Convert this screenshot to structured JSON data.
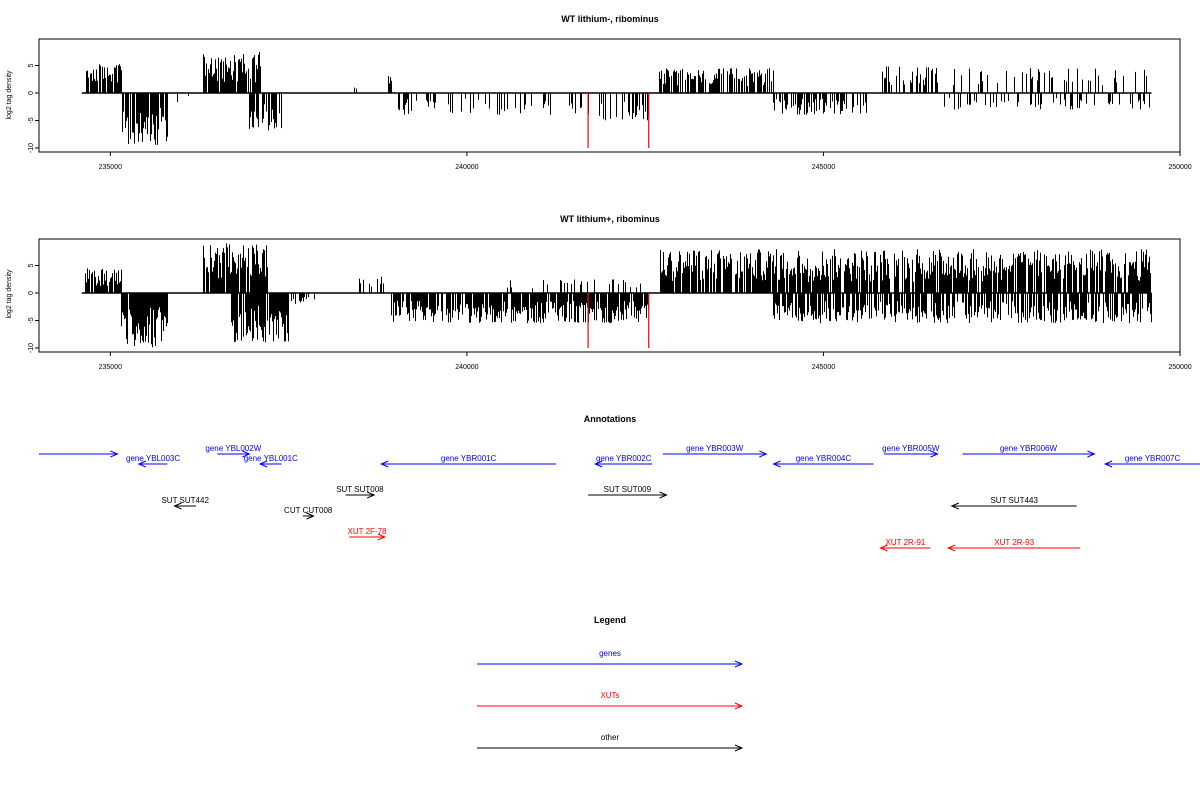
{
  "chart_data": [
    {
      "type": "bar",
      "title": "WT lithium-, ribominus",
      "xlabel": "",
      "ylabel": "log2 tag density",
      "xlim": [
        234000,
        250000
      ],
      "ylim": [
        -10,
        10
      ],
      "x_ticks": [
        235000,
        240000,
        245000,
        250000
      ],
      "x_tick_labels": [
        "235000",
        "240000",
        "245000",
        "250000"
      ],
      "y_ticks": [
        -10,
        -5,
        0,
        5
      ],
      "y_tick_labels": [
        "-10",
        "-5",
        "0",
        "5"
      ],
      "grid": false,
      "baseline_range": [
        234600,
        249600
      ],
      "highlight_lines": [
        {
          "x": 241700,
          "y": -10,
          "color": "#ff0000"
        },
        {
          "x": 242550,
          "y": -10,
          "color": "#ff0000"
        }
      ],
      "clusters": [
        {
          "from": 234650,
          "to": 235150,
          "sign": 1,
          "max": 5.5,
          "density": 0.9
        },
        {
          "from": 235150,
          "to": 235800,
          "sign": -1,
          "max": 9.5,
          "density": 0.9
        },
        {
          "from": 235800,
          "to": 236100,
          "sign": -1,
          "max": 2,
          "density": 0.15
        },
        {
          "from": 236300,
          "to": 237100,
          "sign": 1,
          "max": 7.5,
          "density": 0.9
        },
        {
          "from": 236950,
          "to": 237400,
          "sign": -1,
          "max": 7,
          "density": 0.7
        },
        {
          "from": 238400,
          "to": 238450,
          "sign": 1,
          "max": 1,
          "density": 0.2
        },
        {
          "from": 238900,
          "to": 238950,
          "sign": 1,
          "max": 4,
          "density": 0.3
        },
        {
          "from": 238950,
          "to": 241600,
          "sign": -1,
          "max": 4,
          "density": 0.22
        },
        {
          "from": 241600,
          "to": 242550,
          "sign": -1,
          "max": 5,
          "density": 0.45
        },
        {
          "from": 242700,
          "to": 244300,
          "sign": 1,
          "max": 4.5,
          "density": 0.65
        },
        {
          "from": 244300,
          "to": 245600,
          "sign": -1,
          "max": 4,
          "density": 0.6
        },
        {
          "from": 245800,
          "to": 246600,
          "sign": 1,
          "max": 5,
          "density": 0.45
        },
        {
          "from": 246700,
          "to": 249600,
          "sign": 1,
          "max": 4.5,
          "density": 0.22
        },
        {
          "from": 246700,
          "to": 249600,
          "sign": -1,
          "max": 3,
          "density": 0.22
        }
      ]
    },
    {
      "type": "bar",
      "title": "WT lithium+, ribominus",
      "xlabel": "",
      "ylabel": "log2 tag density",
      "xlim": [
        234000,
        250000
      ],
      "ylim": [
        -10,
        10
      ],
      "x_ticks": [
        235000,
        240000,
        245000,
        250000
      ],
      "x_tick_labels": [
        "235000",
        "240000",
        "245000",
        "250000"
      ],
      "y_ticks": [
        -10,
        -5,
        0,
        5
      ],
      "y_tick_labels": [
        "-10",
        "-5",
        "0",
        "5"
      ],
      "grid": false,
      "baseline_range": [
        234600,
        249600
      ],
      "highlight_lines": [
        {
          "x": 241700,
          "y": -10,
          "color": "#ff0000"
        },
        {
          "x": 242550,
          "y": -10,
          "color": "#ff0000"
        }
      ],
      "clusters": [
        {
          "from": 234650,
          "to": 235150,
          "sign": 1,
          "max": 4.5,
          "density": 0.9
        },
        {
          "from": 235150,
          "to": 235800,
          "sign": -1,
          "max": 10,
          "density": 0.95
        },
        {
          "from": 236300,
          "to": 237200,
          "sign": 1,
          "max": 9,
          "density": 0.95
        },
        {
          "from": 236700,
          "to": 237500,
          "sign": -1,
          "max": 9,
          "density": 0.8
        },
        {
          "from": 237500,
          "to": 237900,
          "sign": -1,
          "max": 2,
          "density": 0.2
        },
        {
          "from": 238500,
          "to": 238950,
          "sign": 1,
          "max": 3,
          "density": 0.35
        },
        {
          "from": 238950,
          "to": 242550,
          "sign": -1,
          "max": 5.5,
          "density": 0.85
        },
        {
          "from": 240500,
          "to": 242500,
          "sign": 1,
          "max": 2.5,
          "density": 0.15
        },
        {
          "from": 242700,
          "to": 249600,
          "sign": 1,
          "max": 8,
          "density": 0.8
        },
        {
          "from": 244300,
          "to": 249600,
          "sign": -1,
          "max": 5.5,
          "density": 0.7
        }
      ]
    }
  ],
  "annotations_panel": {
    "title": "Annotations",
    "xlim": [
      234000,
      250000
    ],
    "features": [
      {
        "label": "",
        "start": 234000,
        "end": 235100,
        "strand": "+",
        "row": 1,
        "color": "#0000ff"
      },
      {
        "label": "gene YBL003C",
        "start": 235400,
        "end": 235800,
        "strand": "-",
        "row": 0,
        "color": "#0000ff"
      },
      {
        "label": "gene YBL002W",
        "start": 236500,
        "end": 236950,
        "strand": "+",
        "row": 1,
        "color": "#0000ff"
      },
      {
        "label": "gene YBL001C",
        "start": 237100,
        "end": 237400,
        "strand": "-",
        "row": 0,
        "color": "#0000ff"
      },
      {
        "label": "gene YBR001C",
        "start": 238800,
        "end": 241250,
        "strand": "-",
        "row": 0,
        "color": "#0000ff"
      },
      {
        "label": "gene YBR002C",
        "start": 241800,
        "end": 242600,
        "strand": "-",
        "row": 0,
        "color": "#0000ff"
      },
      {
        "label": "gene YBR003W",
        "start": 242750,
        "end": 244200,
        "strand": "+",
        "row": 1,
        "color": "#0000ff"
      },
      {
        "label": "gene YBR004C",
        "start": 244300,
        "end": 245700,
        "strand": "-",
        "row": 0,
        "color": "#0000ff"
      },
      {
        "label": "gene YBR005W",
        "start": 245850,
        "end": 246600,
        "strand": "+",
        "row": 1,
        "color": "#0000ff"
      },
      {
        "label": "gene YBR006W",
        "start": 246950,
        "end": 248800,
        "strand": "+",
        "row": 1,
        "color": "#0000ff"
      },
      {
        "label": "gene YBR007C",
        "start": 248950,
        "end": 250300,
        "strand": "-",
        "row": 0,
        "color": "#0000ff"
      },
      {
        "label": "SUT SUT442",
        "start": 235900,
        "end": 236200,
        "strand": "-",
        "row": 3,
        "color": "#000000"
      },
      {
        "label": "SUT SUT008",
        "start": 238300,
        "end": 238700,
        "strand": "+",
        "row": 4,
        "color": "#000000"
      },
      {
        "label": "SUT SUT009",
        "start": 241700,
        "end": 242800,
        "strand": "+",
        "row": 4,
        "color": "#000000"
      },
      {
        "label": "SUT SUT443",
        "start": 246800,
        "end": 248550,
        "strand": "-",
        "row": 3,
        "color": "#000000"
      },
      {
        "label": "CUT CUT008",
        "start": 237700,
        "end": 237850,
        "strand": "+",
        "row": 2,
        "color": "#000000"
      },
      {
        "label": "XUT 2F-78",
        "start": 238350,
        "end": 238850,
        "strand": "+",
        "row": 5,
        "color": "#ff0000"
      },
      {
        "label": "XUT 2R-91",
        "start": 245800,
        "end": 246500,
        "strand": "-",
        "row": 6,
        "color": "#ff0000"
      },
      {
        "label": "XUT 2R-93",
        "start": 246750,
        "end": 248600,
        "strand": "-",
        "row": 6,
        "color": "#ff0000"
      }
    ]
  },
  "legend": {
    "title": "Legend",
    "items": [
      {
        "label": "genes",
        "color": "#0000ff"
      },
      {
        "label": "XUTs",
        "color": "#ff0000"
      },
      {
        "label": "other",
        "color": "#000000"
      }
    ]
  }
}
